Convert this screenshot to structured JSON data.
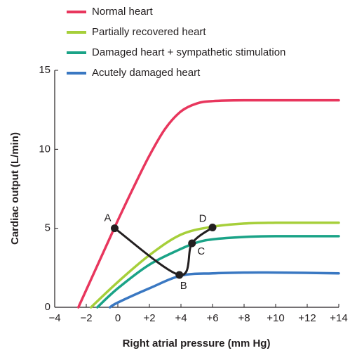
{
  "chart_data": {
    "type": "line",
    "xlabel": "Right atrial pressure (mm Hg)",
    "ylabel": "Cardiac output (L/min)",
    "xlim": [
      -4,
      14
    ],
    "ylim": [
      0,
      15
    ],
    "xticks": [
      {
        "value": -4,
        "label": "−4"
      },
      {
        "value": -2,
        "label": "−2"
      },
      0,
      {
        "value": 2,
        "label": "+2"
      },
      {
        "value": 4,
        "label": "+4"
      },
      {
        "value": 6,
        "label": "+6"
      },
      {
        "value": 8,
        "label": "+8"
      },
      {
        "value": 10,
        "label": "+10"
      },
      {
        "value": 12,
        "label": "+12"
      },
      {
        "value": 14,
        "label": "+14"
      }
    ],
    "yticks": [
      0,
      5,
      10,
      15
    ],
    "series": [
      {
        "name": "Normal heart",
        "color": "#e8365d",
        "x": [
          -2.5,
          -1.5,
          -0.5,
          0,
          1,
          2,
          3,
          4,
          5,
          6,
          8,
          14
        ],
        "values": [
          0,
          2.2,
          4.4,
          5.5,
          7.6,
          9.6,
          11.3,
          12.4,
          12.9,
          13.05,
          13.1,
          13.1
        ]
      },
      {
        "name": "Partially recovered heart",
        "color": "#a6cf3a",
        "x": [
          -1.7,
          0,
          2,
          4,
          6,
          8,
          10,
          14
        ],
        "values": [
          0,
          1.6,
          3.3,
          4.6,
          5.1,
          5.3,
          5.35,
          5.35
        ]
      },
      {
        "name": "Damaged heart + sympathetic stimulation",
        "color": "#1aa387",
        "x": [
          -1.3,
          0,
          2,
          4,
          5,
          6,
          8,
          10,
          14
        ],
        "values": [
          0,
          1.2,
          2.7,
          3.7,
          4.1,
          4.3,
          4.45,
          4.5,
          4.5
        ]
      },
      {
        "name": "Acutely damaged heart",
        "color": "#3a78c2",
        "x": [
          -0.5,
          0,
          2,
          4,
          6,
          8,
          10,
          14
        ],
        "values": [
          0,
          0.3,
          1.2,
          2.0,
          2.15,
          2.2,
          2.2,
          2.15
        ]
      }
    ],
    "points": {
      "color": "#231f20",
      "labels": [
        "A",
        "B",
        "C",
        "D"
      ],
      "x": [
        -0.2,
        3.9,
        4.7,
        6
      ],
      "values": [
        5,
        2.05,
        4.05,
        5.05
      ]
    }
  }
}
